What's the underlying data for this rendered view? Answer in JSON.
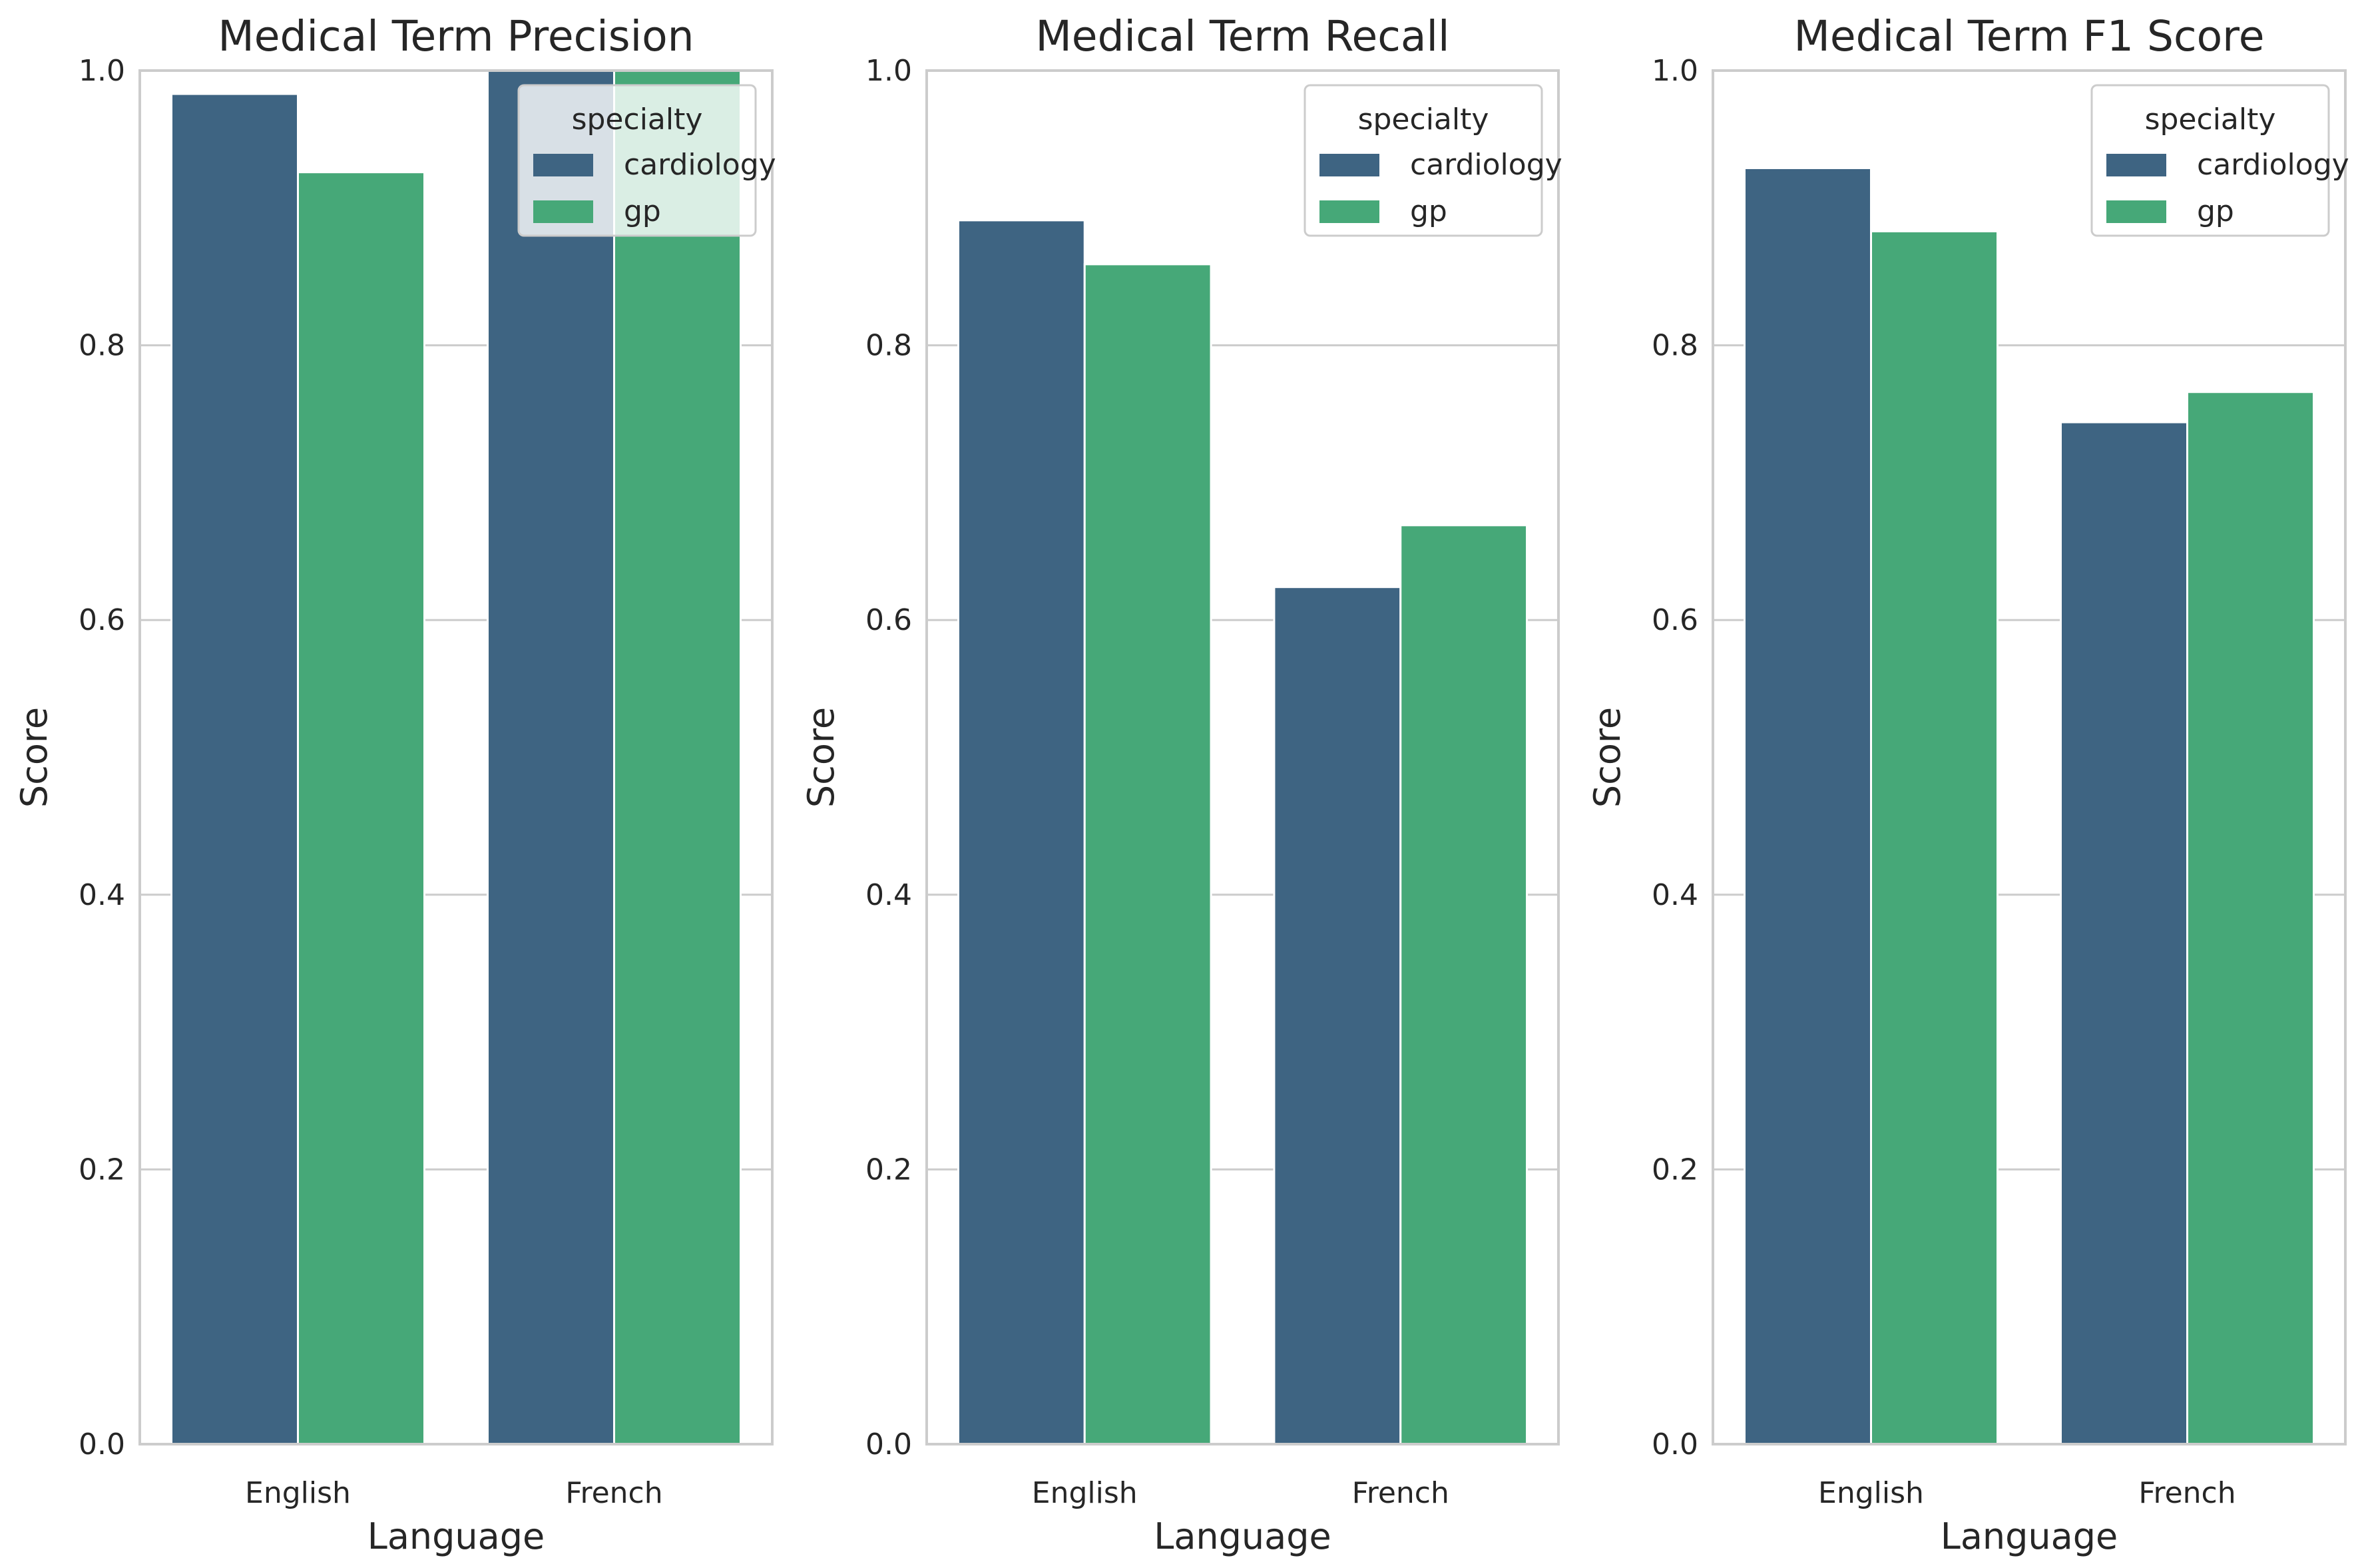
{
  "chart_data": [
    {
      "type": "bar",
      "title": "Medical Term Precision",
      "xlabel": "Language",
      "ylabel": "Score",
      "ylim": [
        0,
        1.0
      ],
      "yticks": [
        "0.0",
        "0.2",
        "0.4",
        "0.6",
        "0.8",
        "1.0"
      ],
      "grid": "horizontal",
      "categories": [
        "English",
        "French"
      ],
      "legend": {
        "title": "specialty",
        "placement": "top-right"
      },
      "series": [
        {
          "name": "cardiology",
          "color": "#3e6482",
          "values": [
            0.983,
            1.0
          ]
        },
        {
          "name": "gp",
          "color": "#46a878",
          "values": [
            0.926,
            1.0
          ]
        }
      ]
    },
    {
      "type": "bar",
      "title": "Medical Term Recall",
      "xlabel": "Language",
      "ylabel": "Score",
      "ylim": [
        0,
        1.0
      ],
      "yticks": [
        "0.0",
        "0.2",
        "0.4",
        "0.6",
        "0.8",
        "1.0"
      ],
      "grid": "horizontal",
      "categories": [
        "English",
        "French"
      ],
      "legend": {
        "title": "specialty",
        "placement": "top-right"
      },
      "series": [
        {
          "name": "cardiology",
          "color": "#3e6482",
          "values": [
            0.891,
            0.624
          ]
        },
        {
          "name": "gp",
          "color": "#46a878",
          "values": [
            0.859,
            0.669
          ]
        }
      ]
    },
    {
      "type": "bar",
      "title": "Medical Term F1 Score",
      "xlabel": "Language",
      "ylabel": "Score",
      "ylim": [
        0,
        1.0
      ],
      "yticks": [
        "0.0",
        "0.2",
        "0.4",
        "0.6",
        "0.8",
        "1.0"
      ],
      "grid": "horizontal",
      "categories": [
        "English",
        "French"
      ],
      "legend": {
        "title": "specialty",
        "placement": "top-right"
      },
      "series": [
        {
          "name": "cardiology",
          "color": "#3e6482",
          "values": [
            0.929,
            0.744
          ]
        },
        {
          "name": "gp",
          "color": "#46a878",
          "values": [
            0.883,
            0.766
          ]
        }
      ]
    }
  ]
}
